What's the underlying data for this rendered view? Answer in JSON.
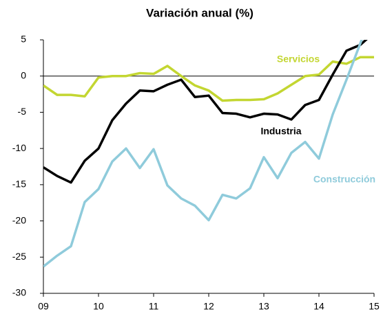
{
  "chart_data": {
    "type": "line",
    "title": "Variación anual (%)",
    "x": [
      2009,
      2009.25,
      2009.5,
      2009.75,
      2010,
      2010.25,
      2010.5,
      2010.75,
      2011,
      2011.25,
      2011.5,
      2011.75,
      2012,
      2012.25,
      2012.5,
      2012.75,
      2013,
      2013.25,
      2013.5,
      2013.75,
      2014,
      2014.25,
      2014.5,
      2014.75,
      2015
    ],
    "series": [
      {
        "name": "Servicios",
        "color": "#c3d631",
        "values": [
          -1.3,
          -2.6,
          -2.6,
          -2.8,
          -0.2,
          0,
          0,
          0.4,
          0.3,
          1.4,
          0,
          -1.3,
          -2,
          -3.4,
          -3.3,
          -3.3,
          -3.2,
          -2.4,
          -1.2,
          0,
          0.2,
          2,
          1.7,
          2.6,
          2.6
        ]
      },
      {
        "name": "Industria",
        "color": "#000000",
        "values": [
          -12.6,
          -13.8,
          -14.7,
          -11.7,
          -10,
          -6.1,
          -3.8,
          -2,
          -2.1,
          -1.2,
          -0.5,
          -2.9,
          -2.7,
          -5.1,
          -5.2,
          -5.7,
          -5.2,
          -5.3,
          -6,
          -4,
          -3.3,
          0.2,
          3.5,
          4.3,
          6
        ]
      },
      {
        "name": "Construcción",
        "color": "#8fcbdb",
        "values": [
          -26.3,
          -24.8,
          -23.5,
          -17.4,
          -15.6,
          -11.8,
          -10,
          -12.7,
          -10.1,
          -15.1,
          -16.9,
          -17.9,
          -19.9,
          -16.4,
          -16.9,
          -15.5,
          -11.2,
          -14.1,
          -10.6,
          -9.1,
          -11.4,
          -5.3,
          -0.5,
          4.5,
          9.5
        ]
      }
    ],
    "xlim": [
      2009,
      2015
    ],
    "xticks": [
      {
        "value": 2009,
        "label": "09"
      },
      {
        "value": 2010,
        "label": "10"
      },
      {
        "value": 2011,
        "label": "11"
      },
      {
        "value": 2012,
        "label": "12"
      },
      {
        "value": 2013,
        "label": "13"
      },
      {
        "value": 2014,
        "label": "14"
      },
      {
        "value": 2015,
        "label": "15"
      }
    ],
    "ylim": [
      -30,
      5
    ],
    "yticks": [
      -30,
      -25,
      -20,
      -15,
      -10,
      -5,
      0,
      5
    ]
  }
}
